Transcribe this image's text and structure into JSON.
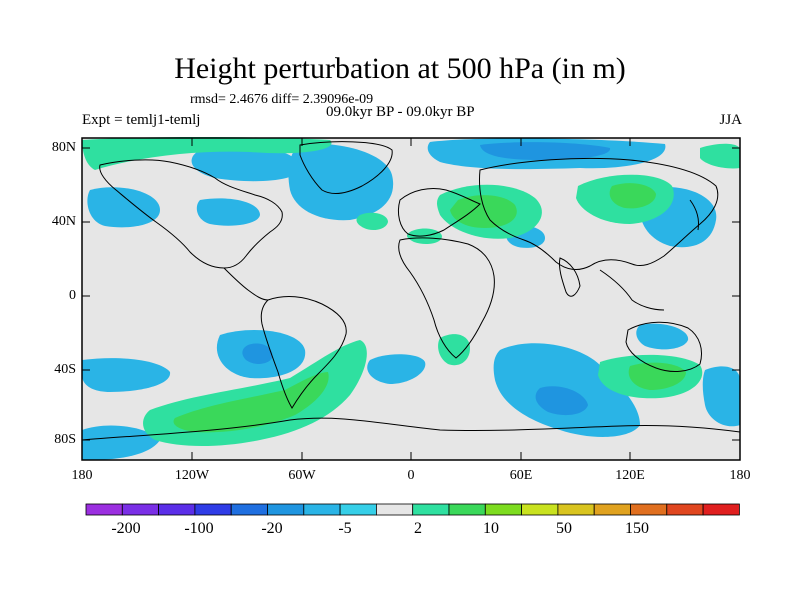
{
  "figure": {
    "title": "Height perturbation at 500 hPa (in m)",
    "stats": "rmsd= 2.4676 diff= 2.39096e-09",
    "experiment": "Expt = temlj1-temlj",
    "period": "09.0kyr BP - 09.0kyr BP",
    "season": "JJA"
  },
  "axes": {
    "lat_ticks": [
      "80N",
      "40N",
      "0",
      "40S",
      "80S"
    ],
    "lon_ticks": [
      "180",
      "120W",
      "60W",
      "0",
      "60E",
      "120E",
      "180"
    ]
  },
  "colorbar": {
    "colors": [
      "#9b2fe0",
      "#7a2fe6",
      "#5b2ee8",
      "#2f3ce6",
      "#1f6fe0",
      "#1f95e0",
      "#2ab4e6",
      "#36cfe8",
      "#e6e6e6",
      "#2fe0a0",
      "#3ad85a",
      "#7ddc1f",
      "#c9e21f",
      "#d9c41f",
      "#e0a21f",
      "#e06f1f",
      "#e0461f",
      "#e01f1f"
    ],
    "labels": [
      "-200",
      "-100",
      "-20",
      "-5",
      "2",
      "10",
      "50",
      "150"
    ]
  },
  "map": {
    "background": "#e6e6e6",
    "negative_color": "#2ab4e6",
    "negative_core_color": "#1f95e0",
    "positive_color": "#2fe0a0",
    "positive_core_color": "#3ad85a"
  }
}
